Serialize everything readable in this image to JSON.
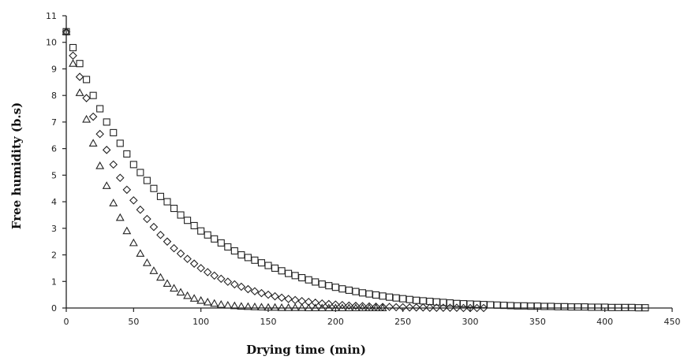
{
  "chart_data": {
    "type": "scatter",
    "title": "",
    "xlabel": "Drying time (min)",
    "ylabel": "Free humidity (b.s)",
    "xlim": [
      0,
      450
    ],
    "ylim": [
      0,
      11
    ],
    "xticks": [
      0,
      50,
      100,
      150,
      200,
      250,
      300,
      350,
      400,
      450
    ],
    "yticks": [
      0,
      1,
      2,
      3,
      4,
      5,
      6,
      7,
      8,
      9,
      10,
      11
    ],
    "grid": false,
    "legend": "none",
    "series": [
      {
        "marker": "square",
        "x": [
          0,
          5,
          10,
          15,
          20,
          25,
          30,
          35,
          40,
          45,
          50,
          55,
          60,
          65,
          70,
          75,
          80,
          85,
          90,
          95,
          100,
          105,
          110,
          115,
          120,
          125,
          130,
          135,
          140,
          145,
          150,
          155,
          160,
          165,
          170,
          175,
          180,
          185,
          190,
          195,
          200,
          205,
          210,
          215,
          220,
          225,
          230,
          235,
          240,
          245,
          250,
          255,
          260,
          265,
          270,
          275,
          280,
          285,
          290,
          295,
          300,
          305,
          310,
          315,
          320,
          325,
          330,
          335,
          340,
          345,
          350,
          355,
          360,
          365,
          370,
          375,
          380,
          385,
          390,
          395,
          400,
          405,
          410,
          415,
          420,
          425,
          430
        ],
        "y": [
          10.4,
          9.8,
          9.2,
          8.6,
          8.0,
          7.5,
          7.0,
          6.6,
          6.2,
          5.8,
          5.4,
          5.1,
          4.8,
          4.5,
          4.2,
          4.0,
          3.75,
          3.5,
          3.3,
          3.1,
          2.9,
          2.75,
          2.6,
          2.45,
          2.3,
          2.15,
          2.0,
          1.9,
          1.8,
          1.7,
          1.6,
          1.5,
          1.4,
          1.3,
          1.22,
          1.14,
          1.06,
          0.98,
          0.9,
          0.84,
          0.78,
          0.72,
          0.67,
          0.62,
          0.57,
          0.53,
          0.49,
          0.45,
          0.41,
          0.38,
          0.35,
          0.32,
          0.29,
          0.27,
          0.25,
          0.23,
          0.21,
          0.19,
          0.17,
          0.16,
          0.15,
          0.14,
          0.13,
          0.12,
          0.11,
          0.1,
          0.09,
          0.08,
          0.08,
          0.07,
          0.07,
          0.06,
          0.06,
          0.05,
          0.05,
          0.04,
          0.04,
          0.04,
          0.03,
          0.03,
          0.03,
          0.02,
          0.02,
          0.02,
          0.02,
          0.01,
          0.01
        ]
      },
      {
        "marker": "diamond",
        "x": [
          0,
          5,
          10,
          15,
          20,
          25,
          30,
          35,
          40,
          45,
          50,
          55,
          60,
          65,
          70,
          75,
          80,
          85,
          90,
          95,
          100,
          105,
          110,
          115,
          120,
          125,
          130,
          135,
          140,
          145,
          150,
          155,
          160,
          165,
          170,
          175,
          180,
          185,
          190,
          195,
          200,
          205,
          210,
          215,
          220,
          225,
          230,
          235,
          240,
          245,
          250,
          255,
          260,
          265,
          270,
          275,
          280,
          285,
          290,
          295,
          300,
          305,
          310
        ],
        "y": [
          10.4,
          9.5,
          8.7,
          7.9,
          7.2,
          6.55,
          5.95,
          5.4,
          4.9,
          4.45,
          4.05,
          3.7,
          3.35,
          3.05,
          2.75,
          2.5,
          2.25,
          2.05,
          1.85,
          1.67,
          1.5,
          1.35,
          1.22,
          1.1,
          0.99,
          0.89,
          0.8,
          0.71,
          0.63,
          0.56,
          0.5,
          0.44,
          0.39,
          0.34,
          0.3,
          0.26,
          0.23,
          0.2,
          0.17,
          0.15,
          0.13,
          0.11,
          0.09,
          0.08,
          0.07,
          0.06,
          0.05,
          0.04,
          0.04,
          0.03,
          0.03,
          0.02,
          0.02,
          0.02,
          0.01,
          0.01,
          0.01,
          0.01,
          0.01,
          0.0,
          0.0,
          0.0,
          0.0
        ]
      },
      {
        "marker": "triangle",
        "x": [
          0,
          5,
          10,
          15,
          20,
          25,
          30,
          35,
          40,
          45,
          50,
          55,
          60,
          65,
          70,
          75,
          80,
          85,
          90,
          95,
          100,
          105,
          110,
          115,
          120,
          125,
          130,
          135,
          140,
          145,
          150,
          155,
          160,
          165,
          170,
          175,
          180,
          185,
          190,
          195,
          200,
          205,
          210,
          215,
          220,
          225,
          230,
          235
        ],
        "y": [
          10.4,
          9.2,
          8.1,
          7.1,
          6.2,
          5.35,
          4.6,
          3.95,
          3.4,
          2.9,
          2.45,
          2.05,
          1.7,
          1.4,
          1.15,
          0.92,
          0.74,
          0.59,
          0.46,
          0.36,
          0.28,
          0.22,
          0.17,
          0.13,
          0.1,
          0.08,
          0.06,
          0.05,
          0.04,
          0.03,
          0.02,
          0.02,
          0.01,
          0.01,
          0.01,
          0.01,
          0.0,
          0.0,
          0.0,
          0.0,
          0.0,
          0.0,
          0.0,
          0.0,
          0.0,
          0.0,
          0.0,
          0.0
        ]
      }
    ],
    "colors": {
      "marker": "#222222",
      "axis": "#222222",
      "background": "#ffffff"
    }
  }
}
